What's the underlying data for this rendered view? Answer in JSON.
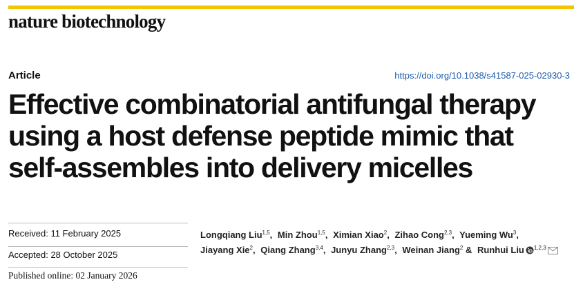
{
  "journal": "nature biotechnology",
  "article_type": "Article",
  "doi": "https://doi.org/10.1038/s41587-025-02930-3",
  "title": "Effective combinatorial antifungal therapy using a host defense peptide mimic that self-assembles into delivery micelles",
  "dates": [
    {
      "label": "Received:",
      "value": "11 February 2025"
    },
    {
      "label": "Accepted:",
      "value": "28 October 2025"
    },
    {
      "label": "Published online:",
      "value": "02 January 2026"
    }
  ],
  "authors": [
    {
      "name": "Longqiang Liu",
      "affiliations": "1,5",
      "separator": ","
    },
    {
      "name": "Min Zhou",
      "affiliations": "1,5",
      "separator": ","
    },
    {
      "name": "Ximian Xiao",
      "affiliations": "2",
      "separator": ","
    },
    {
      "name": "Zihao Cong",
      "affiliations": "2,3",
      "separator": ","
    },
    {
      "name": "Yueming Wu",
      "affiliations": "3",
      "separator": ","
    },
    {
      "name": "Jiayang Xie",
      "affiliations": "2",
      "separator": ","
    },
    {
      "name": "Qiang Zhang",
      "affiliations": "3,4",
      "separator": ","
    },
    {
      "name": "Junyu Zhang",
      "affiliations": "2,3",
      "separator": ","
    },
    {
      "name": "Weinan Jiang",
      "affiliations": "2",
      "separator": "&"
    },
    {
      "name": "Runhui Liu",
      "affiliations": "1,2,3"
    }
  ]
}
